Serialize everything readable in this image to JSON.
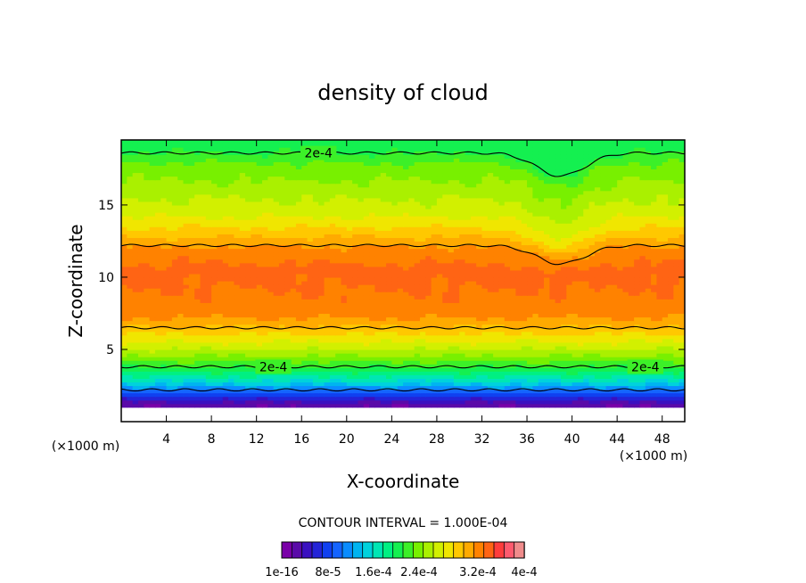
{
  "chart_data": {
    "type": "heatmap",
    "title": "density of cloud",
    "xlabel": "X-coordinate",
    "ylabel": "Z-coordinate",
    "x_unit": "(×1000 m)",
    "y_unit": "(×1000 m)",
    "xlim": [
      0,
      50
    ],
    "ylim": [
      0,
      19.5
    ],
    "x_ticks": [
      4,
      8,
      12,
      16,
      20,
      24,
      28,
      32,
      36,
      40,
      44,
      48
    ],
    "y_ticks": [
      5,
      10,
      15
    ],
    "grid": false,
    "contour_interval_text": "CONTOUR INTERVAL = 1.000E-04",
    "contour_labels": [
      {
        "text": "2e-4",
        "x": 17.5,
        "z": 18.6
      },
      {
        "text": "2e-4",
        "x": 13.5,
        "z": 3.8
      },
      {
        "text": "2e-4",
        "x": 46.5,
        "z": 3.8
      }
    ],
    "colorbar": {
      "tick_labels": [
        "1e-16",
        "8e-5",
        "1.6e-4",
        "2.4e-4",
        "3.2e-4",
        "4e-4"
      ],
      "levels": 24,
      "min": 0,
      "max": 0.0004,
      "colors": [
        "#7a00a8",
        "#5a0aa8",
        "#3a10c0",
        "#2424d8",
        "#1040f0",
        "#1464ff",
        "#0a8cff",
        "#00b4f0",
        "#00d2dc",
        "#00e6b4",
        "#00f082",
        "#14f050",
        "#3cf028",
        "#78f000",
        "#aaf000",
        "#d2f000",
        "#f0e600",
        "#ffc800",
        "#ffaa00",
        "#ff8200",
        "#ff6414",
        "#ff3c3c",
        "#ff5a6e",
        "#f08c8c"
      ]
    },
    "vertical_profile_x_mean": [
      {
        "z": 1.2,
        "density": 2e-05
      },
      {
        "z": 1.7,
        "density": 6e-05
      },
      {
        "z": 2.2,
        "density": 0.0001
      },
      {
        "z": 2.7,
        "density": 0.00014
      },
      {
        "z": 3.2,
        "density": 0.00017
      },
      {
        "z": 3.8,
        "density": 0.0002
      },
      {
        "z": 4.5,
        "density": 0.00023
      },
      {
        "z": 5.3,
        "density": 0.00026
      },
      {
        "z": 6.0,
        "density": 0.00028
      },
      {
        "z": 6.6,
        "density": 0.0003
      },
      {
        "z": 7.3,
        "density": 0.00032
      },
      {
        "z": 8.5,
        "density": 0.00033
      },
      {
        "z": 10.5,
        "density": 0.00034
      },
      {
        "z": 12.0,
        "density": 0.00032
      },
      {
        "z": 12.8,
        "density": 0.0003
      },
      {
        "z": 13.6,
        "density": 0.00028
      },
      {
        "z": 14.5,
        "density": 0.00026
      },
      {
        "z": 15.4,
        "density": 0.00025
      },
      {
        "z": 16.2,
        "density": 0.00024
      },
      {
        "z": 17.0,
        "density": 0.00023
      },
      {
        "z": 17.8,
        "density": 0.00022
      },
      {
        "z": 18.6,
        "density": 0.0002
      },
      {
        "z": 19.2,
        "density": 0.00019
      }
    ]
  }
}
